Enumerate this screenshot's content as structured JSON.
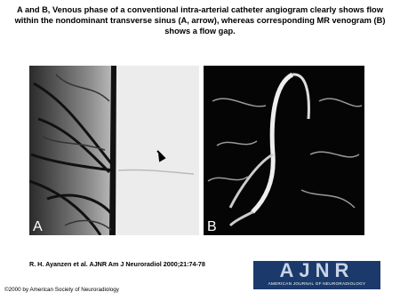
{
  "figure": {
    "title_lines": [
      "A and B, Venous phase of a conventional intra-arterial catheter angiogram clearly shows flow",
      "within the nondominant transverse sinus (A, arrow), whereas corresponding MR venogram (B)",
      "shows a flow gap."
    ],
    "panels": [
      {
        "label": "A"
      },
      {
        "label": "B"
      }
    ],
    "citation": "R. H. Ayanzen et al. AJNR Am J Neuroradiol 2000;21:74-78",
    "logo": {
      "mark": "AJNR",
      "subtitle": "AMERICAN JOURNAL OF NEURORADIOLOGY"
    },
    "copyright": "©2000 by American Society of Neuroradiology"
  }
}
